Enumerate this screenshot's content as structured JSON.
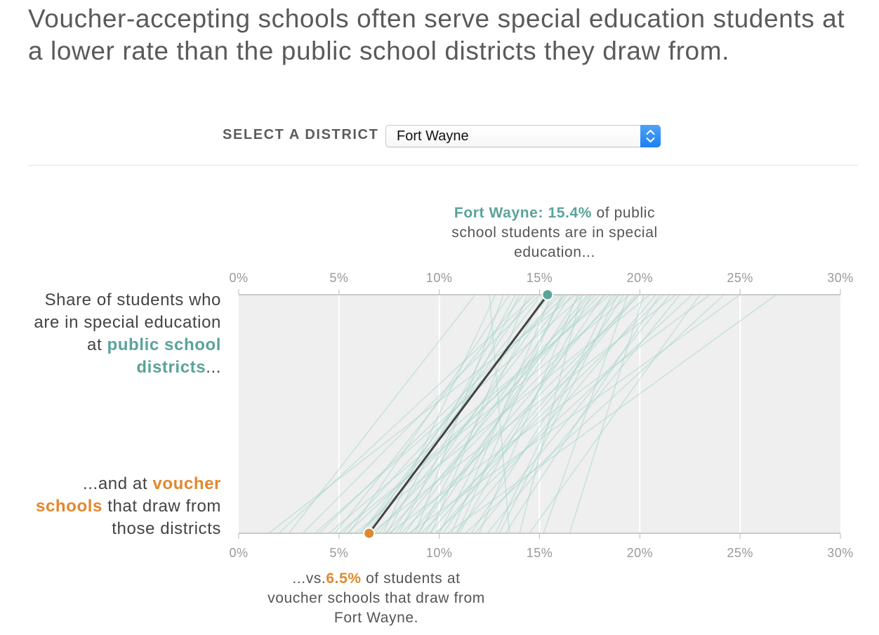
{
  "headline": "Voucher-accepting schools often serve special education students at a lower rate than the public school districts they draw from.",
  "selector": {
    "label": "SELECT A DISTRICT",
    "selected": "Fort Wayne"
  },
  "labels": {
    "top_pre": "Share of students who are in special education at ",
    "top_emph": "public school districts",
    "top_post": "...",
    "bottom_pre": "...and at ",
    "bottom_emph": "voucher schools",
    "bottom_post": " that draw from those districts"
  },
  "annotations": {
    "top_emph": "Fort Wayne: 15.4%",
    "top_rest": " of public school students are in special education...",
    "bottom_pre": "...vs.",
    "bottom_emph": "6.5%",
    "bottom_rest": " of students at voucher schools that draw from Fort Wayne."
  },
  "colors": {
    "teal": "#5aa39a",
    "orange": "#e0882e",
    "highlight_line": "#444444",
    "background_lines": "#a8d6cc",
    "plot_bg": "#efefef",
    "select_accent": "#2a86f2"
  },
  "chart_data": {
    "type": "slope",
    "axis_ticks": [
      "0%",
      "5%",
      "10%",
      "15%",
      "20%",
      "25%",
      "30%"
    ],
    "xlim": [
      0,
      30
    ],
    "grid": true,
    "top_axis_label": "Public school districts",
    "bottom_axis_label": "Voucher schools",
    "highlight": {
      "district": "Fort Wayne",
      "public": 15.4,
      "voucher": 6.5
    },
    "series": [
      {
        "public": 16.8,
        "voucher": 1.5
      },
      {
        "public": 15.0,
        "voucher": 3.2
      },
      {
        "public": 17.2,
        "voucher": 3.8
      },
      {
        "public": 18.5,
        "voucher": 4.5
      },
      {
        "public": 14.2,
        "voucher": 4.8
      },
      {
        "public": 19.5,
        "voucher": 5.0
      },
      {
        "public": 16.0,
        "voucher": 5.2
      },
      {
        "public": 13.5,
        "voucher": 5.5
      },
      {
        "public": 20.5,
        "voucher": 5.8
      },
      {
        "public": 17.8,
        "voucher": 6.0
      },
      {
        "public": 15.5,
        "voucher": 6.2
      },
      {
        "public": 14.6,
        "voucher": 6.4
      },
      {
        "public": 21.8,
        "voucher": 6.6
      },
      {
        "public": 18.0,
        "voucher": 6.8
      },
      {
        "public": 16.4,
        "voucher": 7.0
      },
      {
        "public": 12.8,
        "voucher": 7.2
      },
      {
        "public": 19.0,
        "voucher": 7.3
      },
      {
        "public": 23.5,
        "voucher": 7.5
      },
      {
        "public": 15.8,
        "voucher": 7.6
      },
      {
        "public": 17.4,
        "voucher": 7.8
      },
      {
        "public": 14.0,
        "voucher": 8.0
      },
      {
        "public": 20.0,
        "voucher": 8.1
      },
      {
        "public": 16.6,
        "voucher": 8.3
      },
      {
        "public": 25.0,
        "voucher": 8.5
      },
      {
        "public": 18.8,
        "voucher": 8.6
      },
      {
        "public": 13.2,
        "voucher": 8.8
      },
      {
        "public": 15.2,
        "voucher": 9.0
      },
      {
        "public": 21.2,
        "voucher": 9.1
      },
      {
        "public": 17.0,
        "voucher": 9.3
      },
      {
        "public": 19.8,
        "voucher": 9.5
      },
      {
        "public": 14.4,
        "voucher": 9.6
      },
      {
        "public": 22.6,
        "voucher": 9.8
      },
      {
        "public": 16.2,
        "voucher": 10.0
      },
      {
        "public": 18.2,
        "voucher": 10.2
      },
      {
        "public": 26.8,
        "voucher": 10.4
      },
      {
        "public": 15.6,
        "voucher": 10.6
      },
      {
        "public": 20.8,
        "voucher": 10.8
      },
      {
        "public": 17.6,
        "voucher": 11.0
      },
      {
        "public": 24.2,
        "voucher": 11.3
      },
      {
        "public": 19.2,
        "voucher": 11.6
      },
      {
        "public": 16.9,
        "voucher": 12.0
      },
      {
        "public": 22.0,
        "voucher": 12.4
      },
      {
        "public": 18.6,
        "voucher": 12.8
      },
      {
        "public": 21.0,
        "voucher": 13.3
      },
      {
        "public": 12.5,
        "voucher": 13.5
      },
      {
        "public": 17.1,
        "voucher": 14.0
      },
      {
        "public": 23.0,
        "voucher": 14.5
      },
      {
        "public": 19.4,
        "voucher": 15.2
      },
      {
        "public": 20.2,
        "voucher": 16.5
      },
      {
        "public": 11.8,
        "voucher": 2.5
      },
      {
        "public": 14.8,
        "voucher": 2.0
      },
      {
        "public": 16.3,
        "voucher": 4.0
      },
      {
        "public": 18.3,
        "voucher": 5.4
      },
      {
        "public": 15.1,
        "voucher": 6.1
      },
      {
        "public": 13.8,
        "voucher": 7.4
      },
      {
        "public": 17.5,
        "voucher": 8.9
      },
      {
        "public": 19.9,
        "voucher": 9.9
      },
      {
        "public": 16.1,
        "voucher": 10.9
      },
      {
        "public": 21.5,
        "voucher": 11.8
      },
      {
        "public": 18.9,
        "voucher": 13.0
      }
    ]
  }
}
